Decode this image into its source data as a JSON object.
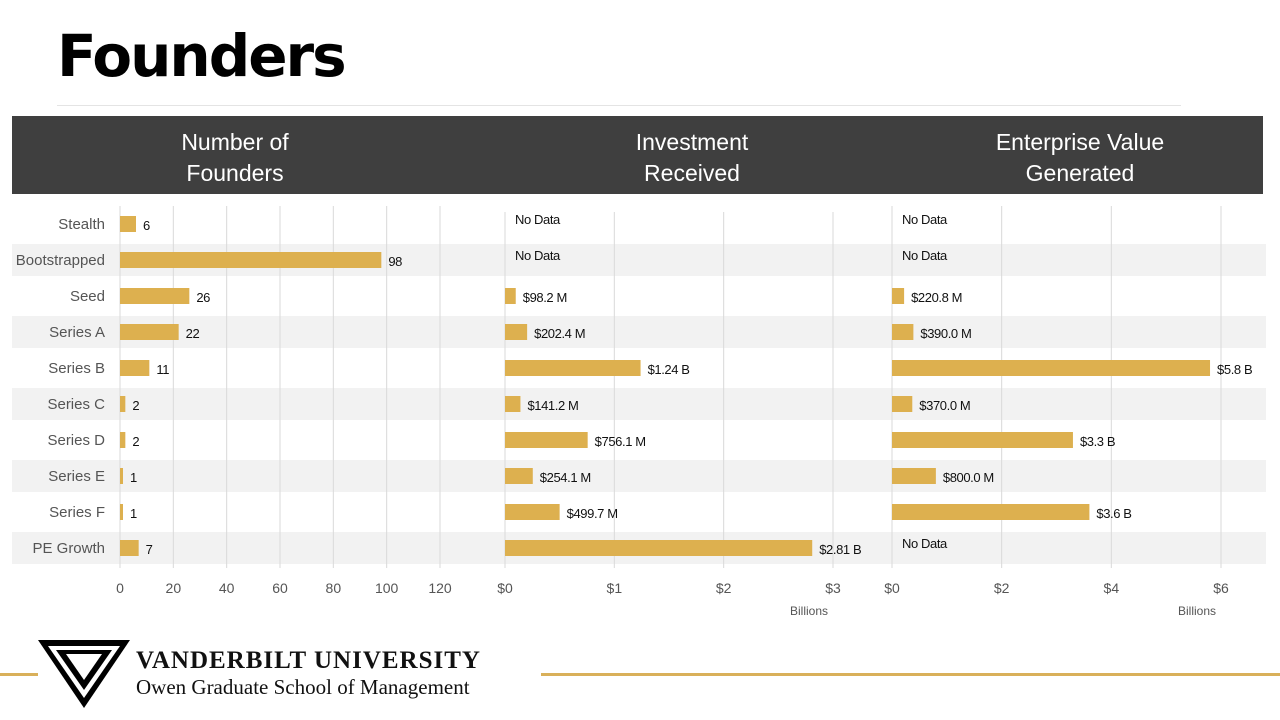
{
  "page": {
    "title": "Founders",
    "headers": [
      "Number of\nFounders",
      "Investment\nReceived",
      "Enterprise Value\nGenerated"
    ],
    "colors": {
      "bar": "#ddb04f",
      "band": "#3f3f3f",
      "stripe": "#f2f2f2",
      "grid": "#d9d9d9",
      "footer_line": "#d9b05a"
    }
  },
  "chart_data": [
    {
      "type": "bar",
      "orientation": "horizontal",
      "title": "Number of Founders",
      "categories": [
        "Stealth",
        "Bootstrapped",
        "Seed",
        "Series A",
        "Series B",
        "Series C",
        "Series D",
        "Series E",
        "Series F",
        "PE Growth"
      ],
      "values": [
        6,
        98,
        26,
        22,
        11,
        2,
        2,
        1,
        1,
        7
      ],
      "labels": [
        "6",
        "98",
        "26",
        "22",
        "11",
        "2",
        "2",
        "1",
        "1",
        "7"
      ],
      "xlim": [
        0,
        120
      ],
      "ticks": [
        "0",
        "20",
        "40",
        "60",
        "80",
        "100",
        "120"
      ],
      "unit": ""
    },
    {
      "type": "bar",
      "orientation": "horizontal",
      "title": "Investment Received",
      "categories": [
        "Stealth",
        "Bootstrapped",
        "Seed",
        "Series A",
        "Series B",
        "Series C",
        "Series D",
        "Series E",
        "Series F",
        "PE Growth"
      ],
      "values": [
        null,
        null,
        0.0982,
        0.2024,
        1.24,
        0.1412,
        0.7561,
        0.2541,
        0.4997,
        2.81
      ],
      "labels": [
        "No Data",
        "No Data",
        "$98.2 M",
        "$202.4 M",
        "$1.24 B",
        "$141.2 M",
        "$756.1 M",
        "$254.1 M",
        "$499.7 M",
        "$2.81 B"
      ],
      "xlim": [
        0,
        3
      ],
      "ticks": [
        "$0",
        "$1",
        "$2",
        "$3"
      ],
      "unit": "Billions"
    },
    {
      "type": "bar",
      "orientation": "horizontal",
      "title": "Enterprise Value Generated",
      "categories": [
        "Stealth",
        "Bootstrapped",
        "Seed",
        "Series A",
        "Series B",
        "Series C",
        "Series D",
        "Series E",
        "Series F",
        "PE Growth"
      ],
      "values": [
        null,
        null,
        0.2208,
        0.39,
        5.8,
        0.37,
        3.3,
        0.8,
        3.6,
        null
      ],
      "labels": [
        "No Data",
        "No Data",
        "$220.8 M",
        "$390.0 M",
        "$5.8 B",
        "$370.0 M",
        "$3.3 B",
        "$800.0 M",
        "$3.6 B",
        "No Data"
      ],
      "xlim": [
        0,
        6
      ],
      "ticks": [
        "$0",
        "$2",
        "$4",
        "$6"
      ],
      "unit": "Billions"
    }
  ],
  "footer": {
    "university": "VANDERBILT UNIVERSITY",
    "school": "Owen Graduate School of Management"
  }
}
